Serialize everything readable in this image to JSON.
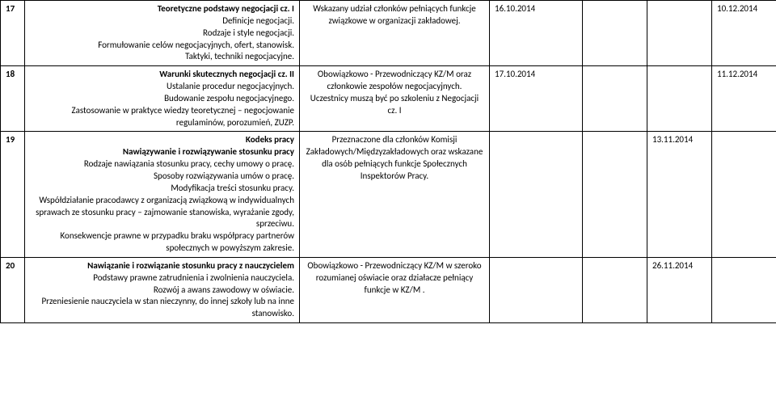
{
  "rows": [
    {
      "num": "17",
      "topic": {
        "title": "Teoretyczne podstawy negocjacji  cz. I",
        "lines": [
          "Definicje negocjacji.",
          "Rodzaje i style negocjacji.",
          "Formułowanie celów  negocjacyjnych, ofert, stanowisk.",
          "Taktyki, techniki negocjacyjne."
        ]
      },
      "participants": "Wskazany udział członków pełniących funkcje związkowe w organizacji zakładowej.",
      "d1": "16.10.2014",
      "d4": "10.12.2014"
    },
    {
      "num": "18",
      "topic": {
        "title": "Warunki skutecznych negocjacji  cz. II",
        "lines": [
          "Ustalanie procedur negocjacyjnych.",
          "Budowanie zespołu negocjacyjnego.",
          "Zastosowanie w praktyce wiedzy teoretycznej – negocjowanie regulaminów, porozumień, ZUZP."
        ]
      },
      "participants": "Obowiązkowo - Przewodniczący KZ/M oraz  członkowie zespołów negocjacyjnych.\nUczestnicy muszą być po szkoleniu z Negocjacji cz. I",
      "d1": "17.10.2014",
      "d4": "11.12.2014"
    },
    {
      "num": "19",
      "topic": {
        "title": "Kodeks pracy",
        "sub_bold": "Nawiązywanie i rozwiązywanie stosunku pracy",
        "lines": [
          "Rodzaje nawiązania stosunku pracy, cechy umowy o pracę.",
          "Sposoby rozwiązywania umów o pracę.",
          "Modyfikacja treści stosunku pracy.",
          "Współdziałanie pracodawcy z organizacją związkową w indywidualnych sprawach  ze stosunku pracy – zajmowanie stanowiska, wyrażanie zgody, sprzeciwu.",
          "Konsekwencje prawne w przypadku braku współpracy partnerów społecznych w powyższym zakresie."
        ]
      },
      "participants": "Przeznaczone  dla członków Komisji Zakładowych/Międzyzakładowych oraz wskazane dla osób pełniących funkcje Społecznych Inspektorów Pracy.",
      "d3": "13.11.2014"
    },
    {
      "num": "20",
      "topic": {
        "title": "Nawiązanie i rozwiązanie stosunku pracy z nauczycielem",
        "lines": [
          "Podstawy prawne zatrudnienia i zwolnienia nauczyciela.",
          "Rozwój a awans zawodowy w oświacie.",
          "Przeniesienie nauczyciela w stan nieczynny, do innej szkoły  lub na inne stanowisko."
        ]
      },
      "participants": "Obowiązkowo  - Przewodniczący KZ/M w  szeroko rozumianej oświacie oraz działacze pełniący funkcje w KZ/M .",
      "d3": "26.11.2014"
    }
  ]
}
